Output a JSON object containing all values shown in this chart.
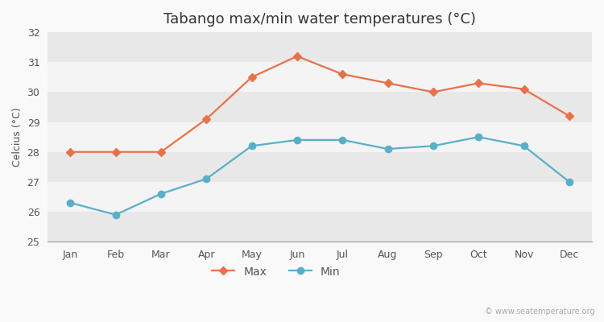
{
  "title": "Tabango max/min water temperatures (°C)",
  "ylabel": "Celcius (°C)",
  "months": [
    "Jan",
    "Feb",
    "Mar",
    "Apr",
    "May",
    "Jun",
    "Jul",
    "Aug",
    "Sep",
    "Oct",
    "Nov",
    "Dec"
  ],
  "max_values": [
    28.0,
    28.0,
    28.0,
    29.1,
    30.5,
    31.2,
    30.6,
    30.3,
    30.0,
    30.3,
    30.1,
    29.2
  ],
  "min_values": [
    26.3,
    25.9,
    26.6,
    27.1,
    28.2,
    28.4,
    28.4,
    28.1,
    28.2,
    28.5,
    28.2,
    27.0
  ],
  "max_color": "#e8714a",
  "min_color": "#5aafc8",
  "ylim": [
    25,
    32
  ],
  "yticks": [
    25,
    26,
    27,
    28,
    29,
    30,
    31,
    32
  ],
  "band_colors": [
    "#e8e8e8",
    "#f4f4f4"
  ],
  "figure_bg": "#f9f9f9",
  "watermark": "© www.seatemperature.org",
  "title_fontsize": 13,
  "label_fontsize": 9,
  "tick_fontsize": 9,
  "legend_fontsize": 10,
  "spine_color": "#aaaaaa"
}
